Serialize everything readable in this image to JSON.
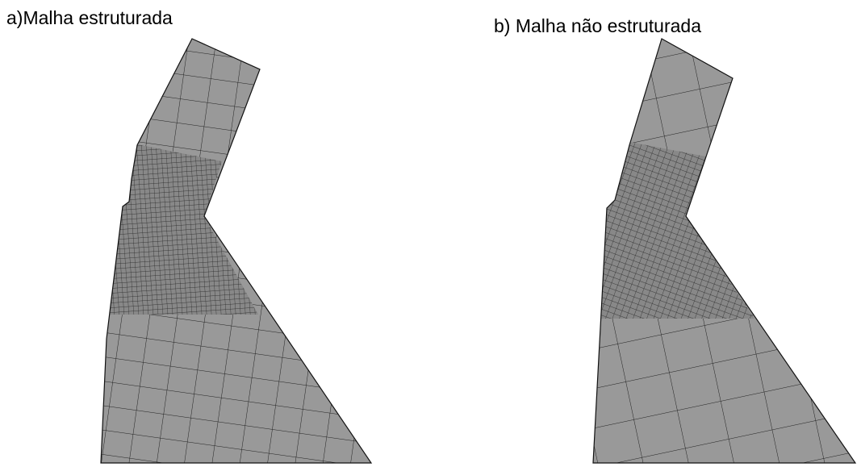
{
  "panels": [
    {
      "label": "a)Malha estruturada"
    },
    {
      "label": "b) Malha não estruturada"
    }
  ]
}
